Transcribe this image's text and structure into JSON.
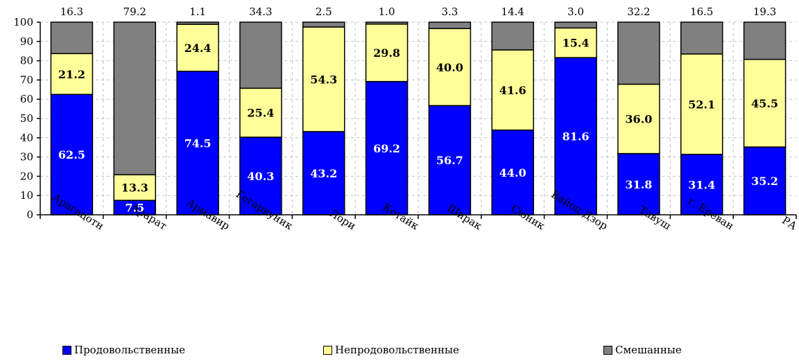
{
  "chart_data": {
    "type": "bar",
    "stacked": true,
    "categories": [
      "Арагацотн",
      "Арарат",
      "Армавир",
      "Гегаркуник",
      "Лори",
      "Котайк",
      "Ширак",
      "Сюник",
      "Вайоц Дзор",
      "Тавуш",
      "г. Ереван",
      "РА"
    ],
    "series": [
      {
        "name": "Продовольственные",
        "color": "#0000FF",
        "values": [
          62.5,
          7.5,
          74.5,
          40.3,
          43.2,
          69.2,
          56.7,
          44.0,
          81.6,
          31.8,
          31.4,
          35.2
        ],
        "labels": [
          "62.5",
          "7.5",
          "74.5",
          "40.3",
          "43.2",
          "69.2",
          "56.7",
          "44.0",
          "81.6",
          "31.8",
          "31.4",
          "35.2"
        ]
      },
      {
        "name": "Непродовольственные",
        "color": "#FFFF99",
        "values": [
          21.2,
          13.3,
          24.4,
          25.4,
          54.3,
          29.8,
          40.0,
          41.6,
          15.4,
          36.0,
          52.1,
          45.5
        ],
        "labels": [
          "21.2",
          "13.3",
          "24.4",
          "25.4",
          "54.3",
          "29.8",
          "40.0",
          "41.6",
          "15.4",
          "36.0",
          "52.1",
          "45.5"
        ]
      },
      {
        "name": "Смешанные",
        "color": "#808080",
        "values": [
          16.3,
          79.2,
          1.1,
          34.3,
          2.5,
          1.0,
          3.3,
          14.4,
          3.0,
          32.2,
          16.5,
          19.3
        ],
        "labels": [
          "16.3",
          "79.2",
          "1.1",
          "34.3",
          "2.5",
          "1.0",
          "3.3",
          "14.4",
          "3.0",
          "32.2",
          "16.5",
          "19.3"
        ]
      }
    ],
    "yticks": [
      "0",
      "10",
      "20",
      "30",
      "40",
      "50",
      "60",
      "70",
      "80",
      "90",
      "100"
    ],
    "ylim": [
      0,
      100
    ],
    "grid": true,
    "legend_position": "bottom",
    "title": "",
    "xlabel": "",
    "ylabel": ""
  }
}
